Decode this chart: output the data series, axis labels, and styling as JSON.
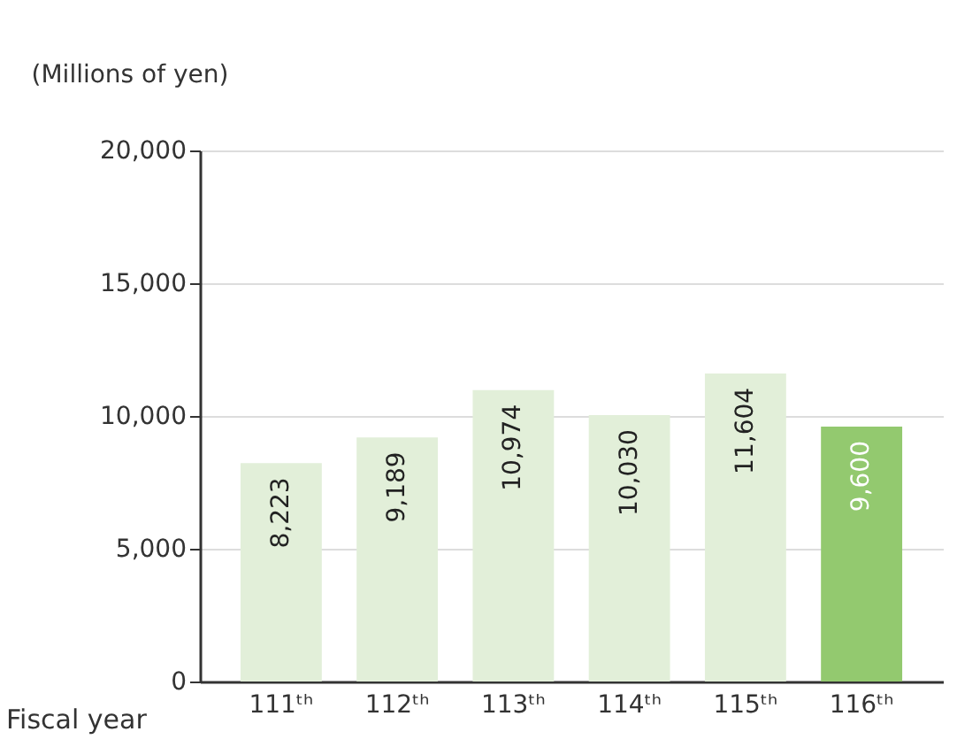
{
  "chart_data": {
    "type": "bar",
    "ylabel": "(Millions of yen)",
    "xlabel": "Fiscal year",
    "categories": [
      "111ᵗʰ",
      "112ᵗʰ",
      "113ᵗʰ",
      "114ᵗʰ",
      "115ᵗʰ",
      "116ᵗʰ"
    ],
    "values": [
      8223,
      9189,
      10974,
      10030,
      11604,
      9600
    ],
    "value_labels": [
      "8,223",
      "9,189",
      "10,974",
      "10,030",
      "11,604",
      "9,600"
    ],
    "colors": [
      "#e2efd9",
      "#e2efd9",
      "#e2efd9",
      "#e2efd9",
      "#e2efd9",
      "#93c96f"
    ],
    "ylim": [
      0,
      20000
    ],
    "yticks": [
      0,
      {
        "value": 5000,
        "label": "5,000"
      },
      {
        "value": 10000,
        "label": "10,000"
      },
      {
        "value": 15000,
        "label": "15,000"
      },
      {
        "value": 20000,
        "label": "20,000"
      }
    ],
    "grid": "y"
  }
}
